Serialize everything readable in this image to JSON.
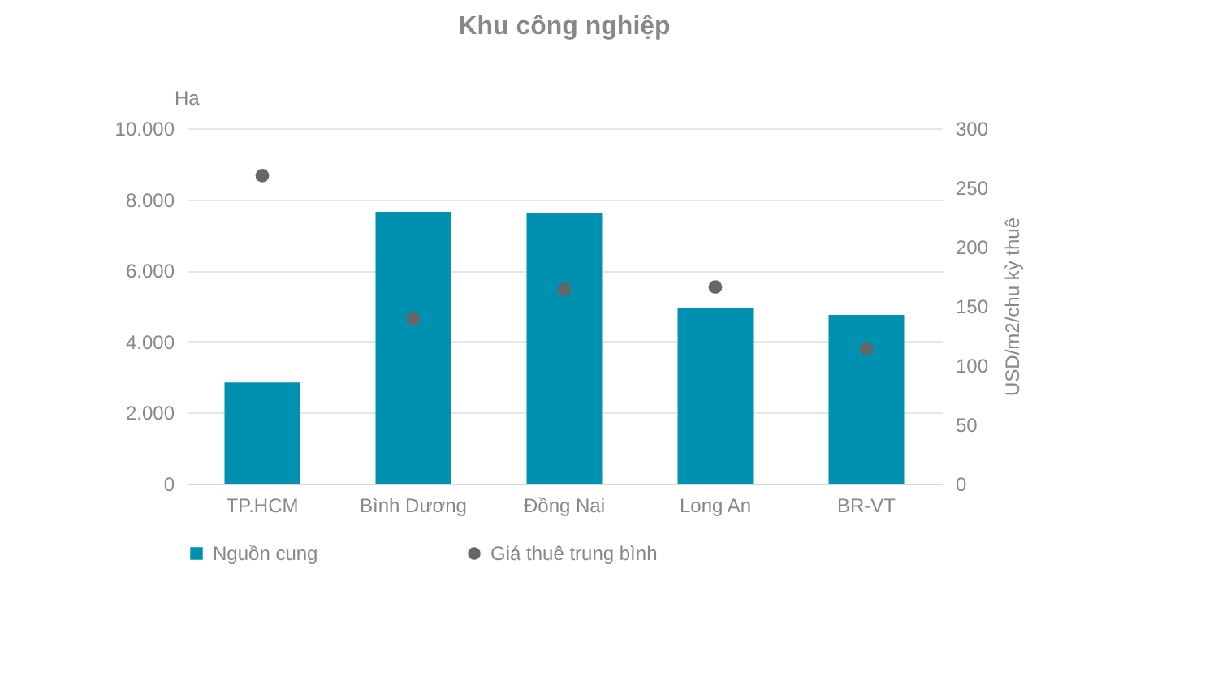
{
  "chart_data": {
    "type": "bar",
    "title": "Khu công nghiệp",
    "ylabel": "Ha",
    "y2label": "USD/m2/chu kỳ thuê",
    "categories": [
      "TP.HCM",
      "Bình Dương",
      "Đồng Nai",
      "Long An",
      "BR-VT"
    ],
    "series": [
      {
        "name": "Nguồn cung",
        "color": "#0091b0",
        "values": [
          2850,
          7650,
          7600,
          4930,
          4750
        ]
      },
      {
        "name": "Giá thuê trung bình",
        "type": "scatter",
        "axis": "y2",
        "color": "#666666",
        "marker": "circle",
        "values": [
          260,
          139,
          164,
          166,
          114
        ]
      }
    ],
    "ylim": [
      0,
      10000
    ],
    "yticks": [
      0,
      {
        "value": 2000,
        "label": "2.000"
      },
      {
        "value": 4000,
        "label": "4.000"
      },
      {
        "value": 6000,
        "label": "6.000"
      },
      {
        "value": 8000,
        "label": "8.000"
      },
      {
        "value": 10000,
        "label": "10.000"
      }
    ],
    "y2lim": [
      0,
      300
    ],
    "y2ticks": [
      0,
      50,
      100,
      150,
      200,
      250,
      300
    ],
    "grid": "y",
    "legend": "bottom"
  }
}
